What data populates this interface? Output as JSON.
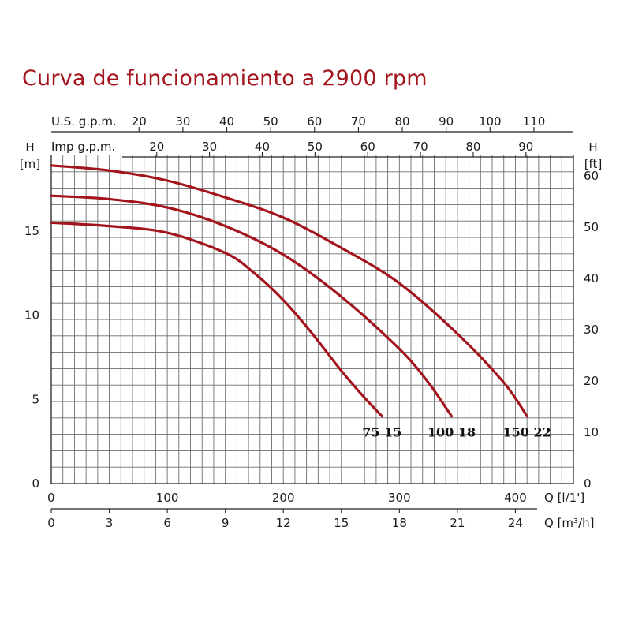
{
  "chart_data": {
    "type": "line",
    "title": "Curva de funcionamiento a 2900 rpm",
    "axes": {
      "left": {
        "label_top": "H",
        "label_unit": "[m]",
        "range": [
          0,
          19.5
        ],
        "ticks": [
          0,
          5,
          10,
          15
        ]
      },
      "right": {
        "label_top": "H",
        "label_unit": "[ft]",
        "range": [
          0,
          64
        ],
        "ticks": [
          0,
          10,
          20,
          30,
          40,
          50,
          60
        ]
      },
      "x_lpm": {
        "label": "Q [l/1']",
        "range": [
          0,
          450
        ],
        "ticks": [
          0,
          100,
          200,
          300,
          400
        ]
      },
      "x_m3h": {
        "label": "Q [m³/h]",
        "range": [
          0,
          27
        ],
        "ticks": [
          0,
          3,
          6,
          9,
          12,
          15,
          18,
          21,
          24
        ]
      },
      "top_usgpm": {
        "label": "U.S. g.p.m.",
        "range": [
          0,
          119
        ],
        "ticks": [
          20,
          30,
          40,
          50,
          60,
          70,
          80,
          90,
          100,
          110
        ]
      },
      "top_impgpm": {
        "label": "Imp g.p.m.",
        "range": [
          0,
          99
        ],
        "ticks": [
          20,
          30,
          40,
          50,
          60,
          70,
          80,
          90
        ]
      }
    },
    "grid": true,
    "line_color": "#a3141c",
    "series": [
      {
        "name": "75 15",
        "x": [
          0,
          50,
          100,
          150,
          175,
          200,
          225,
          250,
          270,
          285
        ],
        "y": [
          15.5,
          15.3,
          14.9,
          13.7,
          12.5,
          10.9,
          8.9,
          6.7,
          5.1,
          4.0
        ]
      },
      {
        "name": "100 18",
        "x": [
          0,
          50,
          100,
          150,
          200,
          250,
          300,
          325,
          345
        ],
        "y": [
          17.1,
          16.9,
          16.4,
          15.3,
          13.6,
          11.1,
          8.0,
          6.0,
          4.0
        ]
      },
      {
        "name": "150 22",
        "x": [
          0,
          50,
          100,
          150,
          200,
          250,
          300,
          350,
          390,
          410
        ],
        "y": [
          18.9,
          18.6,
          18.0,
          17.0,
          15.8,
          14.0,
          11.9,
          8.9,
          6.0,
          4.0
        ]
      }
    ]
  }
}
